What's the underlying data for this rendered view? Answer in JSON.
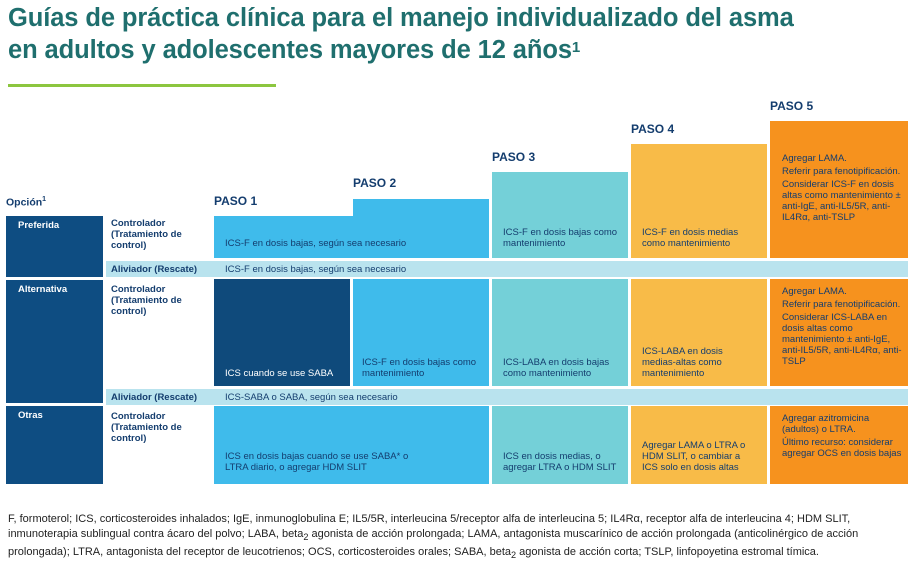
{
  "title": {
    "line1": "Guías de práctica clínica para el manejo individualizado del asma",
    "line2": "en adultos y adolescentes mayores de 12 años",
    "ref": "1"
  },
  "steps": [
    "PASO 1",
    "PASO 2",
    "PASO 3",
    "PASO 4",
    "PASO 5"
  ],
  "option_header": {
    "label": "Opción",
    "ref": "1"
  },
  "rows": {
    "preferida": {
      "label": "Preferida",
      "controller_label": "Controlador (Tratamiento de control)",
      "reliever_label": "Aliviador (Rescate)",
      "steps12": "ICS-F en dosis bajas, según sea necesario",
      "step3": "ICS-F en dosis bajas como mantenimiento",
      "step4": "ICS-F en dosis medias como mantenimiento",
      "step5": [
        "Agregar LAMA.",
        "Referir para fenotipificación.",
        "Considerar ICS-F en dosis altas como mantenimiento ± anti-IgE, anti-IL5/5R, anti-IL4Rα, anti-TSLP"
      ],
      "reliever": "ICS-F en dosis bajas, según sea necesario"
    },
    "alternativa": {
      "label": "Alternativa",
      "controller_label": "Controlador (Tratamiento de control)",
      "reliever_label": "Aliviador (Rescate)",
      "step1": "ICS cuando se use SABA",
      "step2": "ICS-F en dosis bajas como mantenimiento",
      "step3": "ICS-LABA en dosis bajas como mantenimiento",
      "step4": "ICS-LABA en dosis medias-altas como mantenimiento",
      "step5": [
        "Agregar LAMA.",
        "Referir para fenotipificación.",
        "Considerar ICS-LABA en dosis altas como mantenimiento ± anti-IgE, anti-IL5/5R, anti-IL4Rα, anti-TSLP"
      ],
      "reliever": "ICS-SABA o SABA, según sea necesario"
    },
    "otras": {
      "label": "Otras",
      "controller_label": "Controlador (Tratamiento de control)",
      "steps12": "ICS en dosis bajas cuando se use SABA* o LTRA diario, o agregar HDM SLIT",
      "step3": "ICS en dosis medias, o agregar LTRA o HDM SLIT",
      "step4": "Agregar LAMA o LTRA o HDM SLIT, o cambiar a ICS solo en dosis altas",
      "step5": [
        "Agregar azitromicina (adultos) o LTRA.",
        "Último recurso: considerar agregar OCS en dosis bajas"
      ]
    }
  },
  "footnote": {
    "part1": "F, formoterol; ICS, corticosteroides inhalados; IgE, inmunoglobulina E; IL5/5R, interleucina 5/receptor alfa de interleucina 5; IL4Rα, receptor alfa de interleucina 4; HDM SLIT, inmunoterapia sublingual contra ácaro del polvo; LABA, beta",
    "sub1": "2",
    "part2": " agonista de acción prolongada; LAMA, antagonista muscarínico de acción prolongada (anticolinérgico de acción prolongada); LTRA, antagonista del receptor de leucotrienos; OCS, corticosteroides orales; SABA, beta",
    "sub2": "2",
    "part3": " agonista de acción corta; TSLP, linfopoyetina estromal tímica."
  },
  "colors": {
    "title": "#1f6f6e",
    "rule": "#8cc63f",
    "navy": "#0e4d82",
    "step12": "#3fbbeb",
    "step3": "#74d0d8",
    "step4": "#f8bb48",
    "step5": "#f6921e",
    "reliever_bar": "#b9e3ee"
  }
}
